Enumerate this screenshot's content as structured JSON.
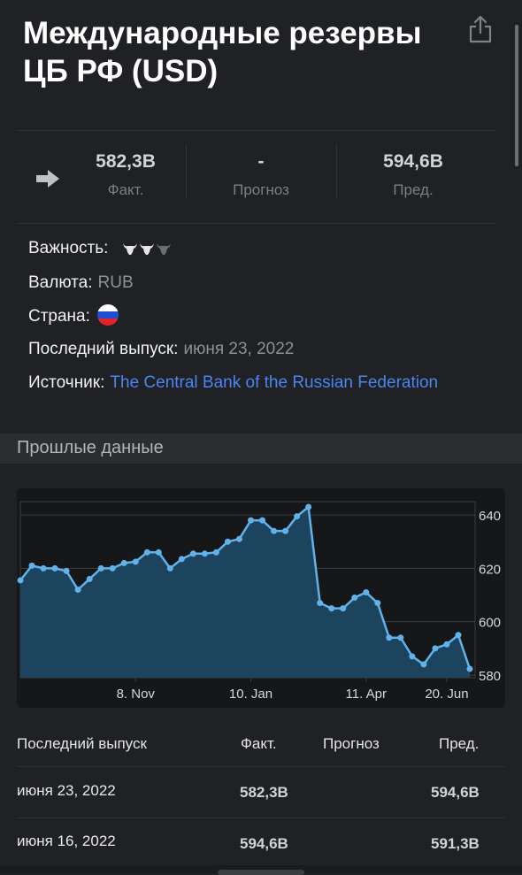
{
  "header": {
    "title": "Международные резервы ЦБ РФ (USD)"
  },
  "stats": {
    "actual": {
      "value": "582,3B",
      "label": "Факт."
    },
    "forecast": {
      "value": "-",
      "label": "Прогноз"
    },
    "previous": {
      "value": "594,6B",
      "label": "Пред."
    }
  },
  "info": {
    "importance_label": "Важность:",
    "importance_level": 2,
    "importance_max": 3,
    "currency_label": "Валюта:",
    "currency_value": "RUB",
    "country_label": "Страна:",
    "country_flag": "russia-flag-icon",
    "last_release_label": "Последний выпуск:",
    "last_release_value": "июня 23, 2022",
    "source_label": "Источник:",
    "source_value": "The Central Bank of the Russian Federation"
  },
  "history": {
    "title": "Прошлые данные"
  },
  "chart_data": {
    "type": "area",
    "x_tick_labels": [
      "8. Nov",
      "10. Jan",
      "11. Apr",
      "20. Jun"
    ],
    "y_ticks": [
      580,
      600,
      620,
      640
    ],
    "ylim": [
      579,
      645
    ],
    "grid": true,
    "values": [
      615.5,
      621,
      620,
      620,
      619,
      612,
      616,
      620,
      620,
      622,
      622.5,
      626,
      626,
      620,
      623.5,
      625.5,
      625.5,
      626,
      630,
      631,
      638,
      638,
      634,
      634,
      639.5,
      643,
      607,
      605,
      605,
      609,
      611,
      607,
      594,
      594,
      587,
      584,
      590,
      591.5,
      595,
      582.3
    ],
    "colors": {
      "line": "#62b2ea",
      "fill": "#1d4763",
      "background": "#161719",
      "grid": "#3a3d42",
      "tick_label": "#d6d7d9"
    }
  },
  "table": {
    "headers": {
      "release": "Последний выпуск",
      "actual": "Факт.",
      "forecast": "Прогноз",
      "previous": "Пред."
    },
    "rows": [
      {
        "date": "июня 23, 2022",
        "actual": "582,3B",
        "forecast": "",
        "previous": "594,6B"
      },
      {
        "date": "июня 16, 2022",
        "actual": "594,6B",
        "forecast": "",
        "previous": "591,3B"
      }
    ]
  }
}
